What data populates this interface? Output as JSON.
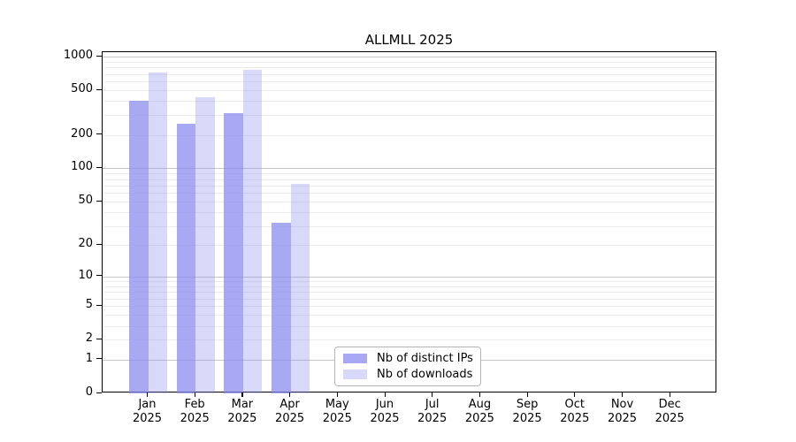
{
  "chart_data": {
    "type": "bar",
    "title": "ALLMLL 2025",
    "xlabel": "",
    "ylabel": "",
    "categories": [
      {
        "month": "Jan",
        "year": "2025"
      },
      {
        "month": "Feb",
        "year": "2025"
      },
      {
        "month": "Mar",
        "year": "2025"
      },
      {
        "month": "Apr",
        "year": "2025"
      },
      {
        "month": "May",
        "year": "2025"
      },
      {
        "month": "Jun",
        "year": "2025"
      },
      {
        "month": "Jul",
        "year": "2025"
      },
      {
        "month": "Aug",
        "year": "2025"
      },
      {
        "month": "Sep",
        "year": "2025"
      },
      {
        "month": "Oct",
        "year": "2025"
      },
      {
        "month": "Nov",
        "year": "2025"
      },
      {
        "month": "Dec",
        "year": "2025"
      }
    ],
    "series": [
      {
        "name": "Nb of distinct IPs",
        "color": "rgba(136,136,238,0.72)",
        "values": [
          400,
          250,
          310,
          32,
          null,
          null,
          null,
          null,
          null,
          null,
          null,
          null
        ]
      },
      {
        "name": "Nb of downloads",
        "color": "rgba(136,136,238,0.33)",
        "values": [
          720,
          430,
          760,
          73,
          null,
          null,
          null,
          null,
          null,
          null,
          null,
          null
        ]
      }
    ],
    "yscale": "log1p",
    "ylim": [
      0,
      1050
    ],
    "yticks": [
      0,
      1,
      2,
      5,
      10,
      20,
      50,
      100,
      200,
      500,
      1000
    ],
    "grid": {
      "minor": [
        2,
        3,
        4,
        5,
        6,
        7,
        8,
        9,
        20,
        30,
        40,
        50,
        60,
        70,
        80,
        90,
        200,
        300,
        400,
        500,
        600,
        700,
        800,
        900
      ],
      "major": [
        1,
        10,
        100,
        1000
      ]
    },
    "legend_position": "lower center-left inside plot",
    "colors": {
      "grid_minor": "#ececec",
      "grid_major": "#c8c8c8",
      "axis": "#000000",
      "background": "#ffffff"
    }
  }
}
